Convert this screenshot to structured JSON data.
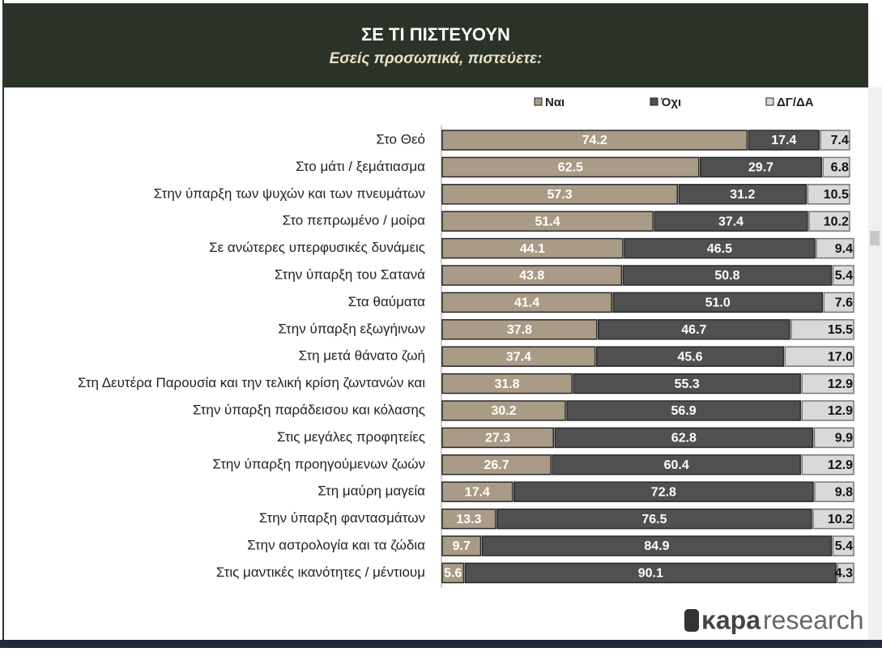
{
  "chart_data": {
    "type": "stacked-bar-horizontal",
    "title": "ΣΕ ΤΙ ΠΙΣΤΕΥΟΥΝ",
    "subtitle": "Εσείς προσωπικά, πιστεύετε:",
    "categories": [
      "Στο Θεό",
      "Στο μάτι / ξεμάτιασμα",
      "Στην ύπαρξη των ψυχών και των πνευμάτων",
      "Στο πεπρωμένο / μοίρα",
      "Σε ανώτερες υπερφυσικές δυνάμεις",
      "Στην ύπαρξη του Σατανά",
      "Στα θαύματα",
      "Στην ύπαρξη εξωγήινων",
      "Στη μετά θάνατο ζωή",
      "Στη Δευτέρα Παρουσία και την τελική κρίση ζωντανών και",
      "Στην ύπαρξη παράδεισου και κόλασης",
      "Στις μεγάλες προφητείες",
      "Στην ύπαρξη προηγούμενων ζωών",
      "Στη μαύρη μαγεία",
      "Στην ύπαρξη φαντασμάτων",
      "Στην αστρολογία και τα ζώδια",
      "Στις μαντικές ικανότητες / μέντιουμ"
    ],
    "series": [
      {
        "name": "Ναι",
        "color": "#a99b85",
        "values": [
          74.2,
          62.5,
          57.3,
          51.4,
          44.1,
          43.8,
          41.4,
          37.8,
          37.4,
          31.8,
          30.2,
          27.3,
          26.7,
          17.4,
          13.3,
          9.7,
          5.6
        ]
      },
      {
        "name": "Όχι",
        "color": "#505050",
        "values": [
          17.4,
          29.7,
          31.2,
          37.4,
          46.5,
          50.8,
          51,
          46.7,
          45.6,
          55.3,
          56.9,
          62.8,
          60.4,
          72.8,
          76.5,
          84.9,
          90.1
        ],
        "value_labels": [
          "17.4",
          "29.7",
          "31.2",
          "37.4",
          "46.5",
          "50.8",
          "51.0",
          "46.7",
          "45.6",
          "55.3",
          "56.9",
          "62.8",
          "60.4",
          "72.8",
          "76.5",
          "84.9",
          "90.1"
        ]
      },
      {
        "name": "ΔΓ/ΔΑ",
        "color": "#d9d9d9",
        "values": [
          7.4,
          6.8,
          10.5,
          10.2,
          9.4,
          5.4,
          7.6,
          15.5,
          17,
          12.9,
          12.9,
          9.9,
          12.9,
          9.8,
          10.2,
          5.4,
          4.3
        ],
        "value_labels": [
          "7.4",
          "6.8",
          "10.5",
          "10.2",
          "9.4",
          "5.4",
          "7.6",
          "15.5",
          "17.0",
          "12.9",
          "12.9",
          "9.9",
          "12.9",
          "9.8",
          "10.2",
          "5.4",
          "4.3"
        ]
      }
    ]
  },
  "logo": {
    "bold": "κapa",
    "light": "research"
  }
}
